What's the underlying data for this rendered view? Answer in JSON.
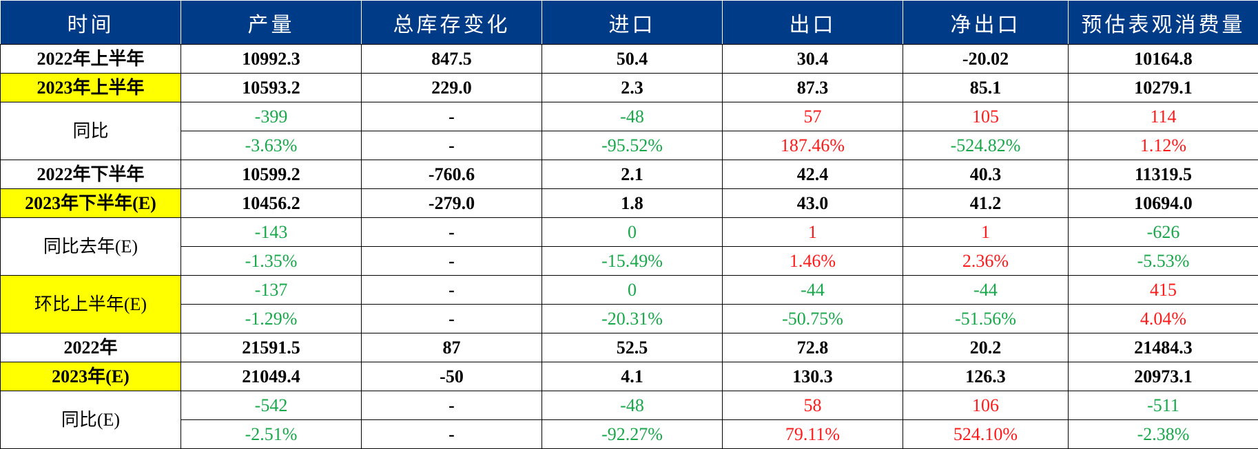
{
  "table": {
    "headers": [
      "时间",
      "产量",
      "总库存变化",
      "进口",
      "出口",
      "净出口",
      "预估表观消费量"
    ],
    "colors": {
      "header_bg": "#003b87",
      "highlight": "#ffff00",
      "negative": "#18a84a",
      "positive": "#ff1a1a"
    },
    "rows": [
      {
        "label": "2022年上半年",
        "cells": [
          "10992.3",
          "847.5",
          "50.4",
          "30.4",
          "-20.02",
          "10164.8"
        ]
      },
      {
        "label": "2023年上半年",
        "cells": [
          "10593.2",
          "229.0",
          "2.3",
          "87.3",
          "85.1",
          "10279.1"
        ]
      },
      {
        "label": "同比",
        "cells": [
          "-399",
          "-",
          "-48",
          "57",
          "105",
          "114"
        ]
      },
      {
        "label": "",
        "cells": [
          "-3.63%",
          "-",
          "-95.52%",
          "187.46%",
          "-524.82%",
          "1.12%"
        ]
      },
      {
        "label": "2022年下半年",
        "cells": [
          "10599.2",
          "-760.6",
          "2.1",
          "42.4",
          "40.3",
          "11319.5"
        ]
      },
      {
        "label": "2023年下半年(E)",
        "cells": [
          "10456.2",
          "-279.0",
          "1.8",
          "43.0",
          "41.2",
          "10694.0"
        ]
      },
      {
        "label": "同比去年(E)",
        "cells": [
          "-143",
          "-",
          "0",
          "1",
          "1",
          "-626"
        ]
      },
      {
        "label": "",
        "cells": [
          "-1.35%",
          "-",
          "-15.49%",
          "1.46%",
          "2.36%",
          "-5.53%"
        ]
      },
      {
        "label": "环比上半年(E)",
        "cells": [
          "-137",
          "-",
          "0",
          "-44",
          "-44",
          "415"
        ]
      },
      {
        "label": "",
        "cells": [
          "-1.29%",
          "-",
          "-20.31%",
          "-50.75%",
          "-51.56%",
          "4.04%"
        ]
      },
      {
        "label": "2022年",
        "cells": [
          "21591.5",
          "87",
          "52.5",
          "72.8",
          "20.2",
          "21484.3"
        ]
      },
      {
        "label": "2023年(E)",
        "cells": [
          "21049.4",
          "-50",
          "4.1",
          "130.3",
          "126.3",
          "20973.1"
        ]
      },
      {
        "label": "同比(E)",
        "cells": [
          "-542",
          "-",
          "-48",
          "58",
          "106",
          "-511"
        ]
      },
      {
        "label": "",
        "cells": [
          "-2.51%",
          "-",
          "-92.27%",
          "79.11%",
          "524.10%",
          "-2.38%"
        ]
      }
    ]
  }
}
